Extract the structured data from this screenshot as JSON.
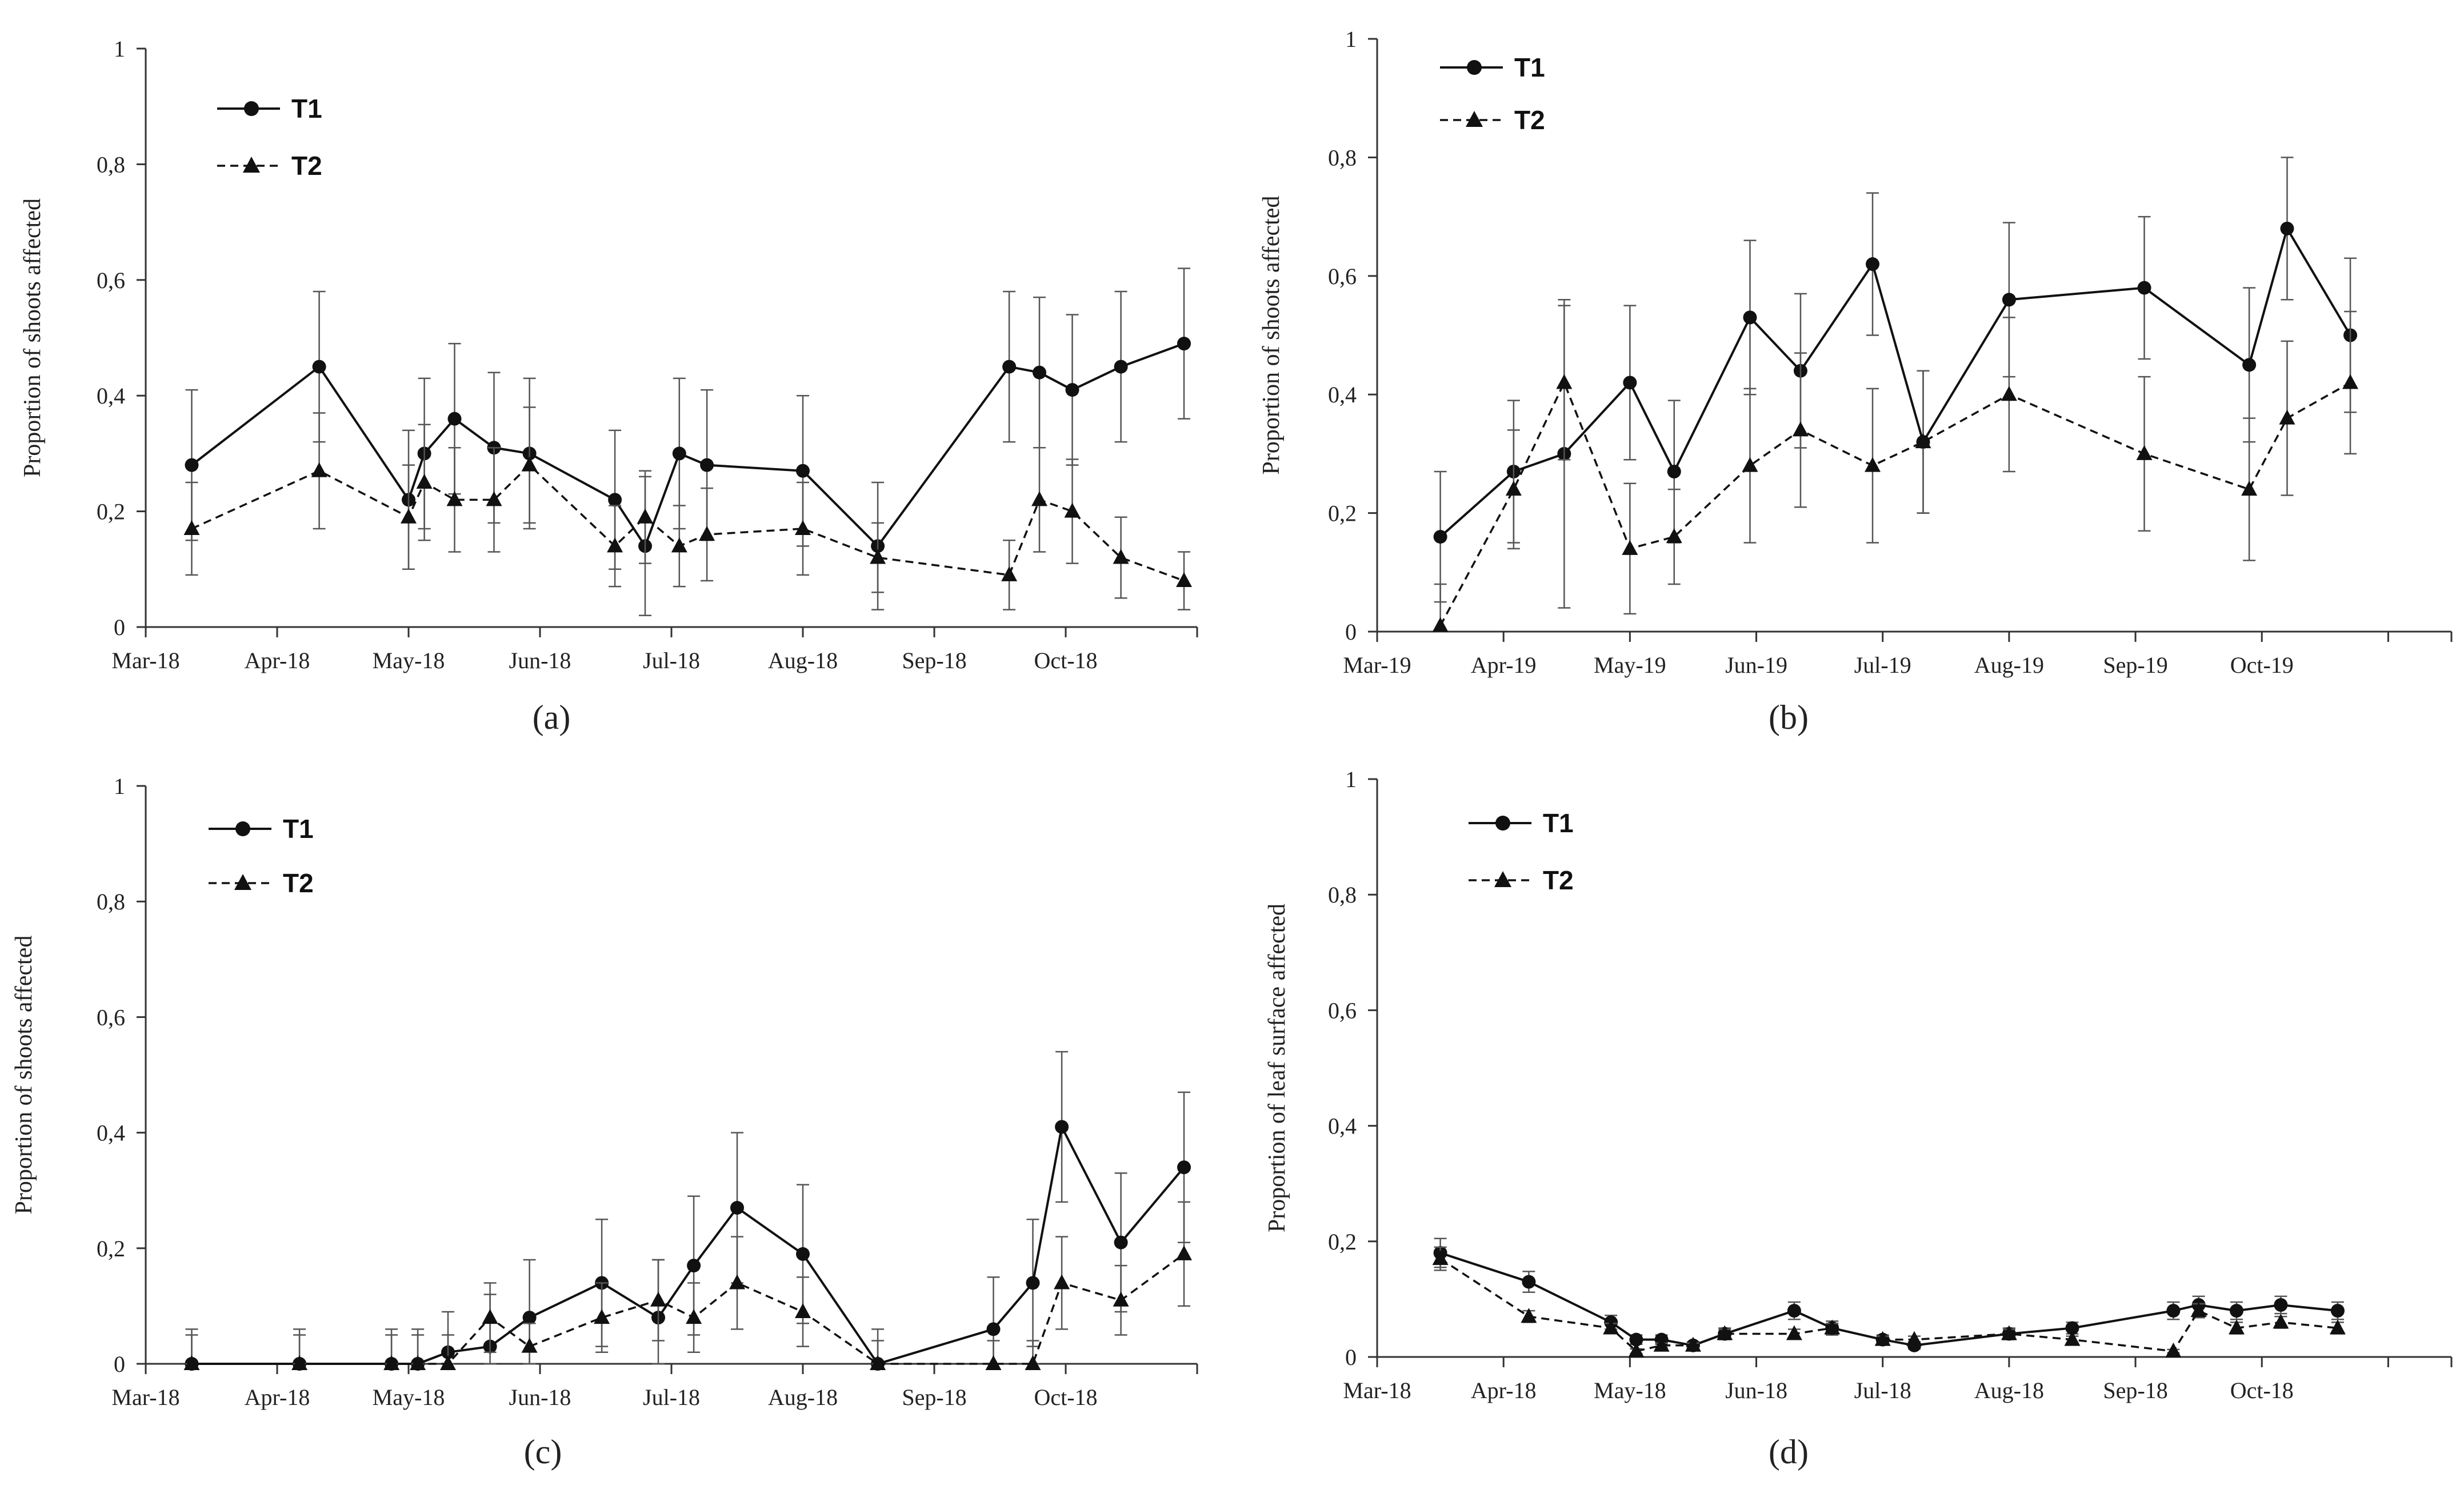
{
  "figure": {
    "series_colors": {
      "T1": "#111111",
      "T2": "#111111"
    }
  },
  "chart_data": [
    {
      "panel": "(a)",
      "type": "line",
      "ylabel": "Proportion of shoots affected",
      "xlabel": "",
      "ylim": [
        0,
        1
      ],
      "yticks": [
        0,
        0.2,
        0.4,
        0.6,
        0.8,
        1
      ],
      "ytick_labels": [
        "0",
        "0,2",
        "0,4",
        "0,6",
        "0,8",
        "1"
      ],
      "xlim": [
        0,
        8
      ],
      "xtick_labels": [
        "Mar-18",
        "Apr-18",
        "May-18",
        "Jun-18",
        "Jul-18",
        "Aug-18",
        "Sep-18",
        "Oct-18"
      ],
      "legend": {
        "position": "top-left",
        "entries": [
          "T1",
          "T2"
        ]
      },
      "series": [
        {
          "name": "T1",
          "marker": "circle",
          "line": "solid",
          "x": [
            0.35,
            1.32,
            2.0,
            2.12,
            2.35,
            2.65,
            2.92,
            3.57,
            3.8,
            4.06,
            4.27,
            5.0,
            5.57,
            6.57,
            6.8,
            7.05,
            7.42,
            7.9
          ],
          "y": [
            0.28,
            0.45,
            0.22,
            0.3,
            0.36,
            0.31,
            0.3,
            0.22,
            0.14,
            0.3,
            0.28,
            0.27,
            0.14,
            0.45,
            0.44,
            0.41,
            0.45,
            0.49
          ],
          "err": [
            0.13,
            0.13,
            0.12,
            0.13,
            0.13,
            0.13,
            0.13,
            0.12,
            0.12,
            0.13,
            0.13,
            0.13,
            0.11,
            0.13,
            0.13,
            0.13,
            0.13,
            0.13
          ]
        },
        {
          "name": "T2",
          "marker": "triangle",
          "line": "dashed",
          "x": [
            0.35,
            1.32,
            2.0,
            2.12,
            2.35,
            2.65,
            2.92,
            3.57,
            3.8,
            4.06,
            4.27,
            5.0,
            5.57,
            6.57,
            6.8,
            7.05,
            7.42,
            7.9
          ],
          "y": [
            0.17,
            0.27,
            0.19,
            0.25,
            0.22,
            0.22,
            0.28,
            0.14,
            0.19,
            0.14,
            0.16,
            0.17,
            0.12,
            0.09,
            0.22,
            0.2,
            0.12,
            0.08
          ],
          "err": [
            0.08,
            0.1,
            0.09,
            0.1,
            0.09,
            0.09,
            0.1,
            0.07,
            0.08,
            0.07,
            0.08,
            0.08,
            0.06,
            0.06,
            0.09,
            0.09,
            0.07,
            0.05
          ]
        }
      ]
    },
    {
      "panel": "(b)",
      "type": "line",
      "ylabel": "Proportion of shoots affected",
      "xlabel": "",
      "ylim": [
        0,
        1
      ],
      "yticks": [
        0,
        0.2,
        0.4,
        0.6,
        0.8,
        1
      ],
      "ytick_labels": [
        "0",
        "0,2",
        "0,4",
        "0,6",
        "0,8",
        "1"
      ],
      "xlim": [
        0,
        8.5
      ],
      "xtick_labels": [
        "Mar-19",
        "Apr-19",
        "May-19",
        "Jun-19",
        "Jul-19",
        "Aug-19",
        "Sep-19",
        "Oct-19"
      ],
      "legend": {
        "position": "top-left",
        "entries": [
          "T1",
          "T2"
        ]
      },
      "series": [
        {
          "name": "T1",
          "marker": "circle",
          "line": "solid",
          "x": [
            0.5,
            1.08,
            1.48,
            2.0,
            2.35,
            2.95,
            3.35,
            3.92,
            4.32,
            5.0,
            6.07,
            6.9,
            7.2,
            7.7
          ],
          "y": [
            0.16,
            0.27,
            0.3,
            0.42,
            0.27,
            0.53,
            0.44,
            0.62,
            0.32,
            0.56,
            0.58,
            0.45,
            0.68,
            0.5
          ],
          "err": [
            0.11,
            0.12,
            0.26,
            0.13,
            0.12,
            0.13,
            0.13,
            0.12,
            0.12,
            0.13,
            0.12,
            0.13,
            0.12,
            0.13
          ]
        },
        {
          "name": "T2",
          "marker": "triangle",
          "line": "dashed",
          "x": [
            0.5,
            1.08,
            1.48,
            2.0,
            2.35,
            2.95,
            3.35,
            3.92,
            4.32,
            5.0,
            6.07,
            6.9,
            7.2,
            7.7
          ],
          "y": [
            0.01,
            0.24,
            0.42,
            0.14,
            0.16,
            0.28,
            0.34,
            0.28,
            0.32,
            0.4,
            0.3,
            0.24,
            0.36,
            0.42
          ],
          "err": [
            0.07,
            0.1,
            0.13,
            0.11,
            0.08,
            0.13,
            0.13,
            0.13,
            0.12,
            0.13,
            0.13,
            0.12,
            0.13,
            0.12
          ]
        }
      ]
    },
    {
      "panel": "(c)",
      "type": "line",
      "ylabel": "Proportion of shoots affected",
      "xlabel": "",
      "ylim": [
        0,
        1
      ],
      "yticks": [
        0,
        0.2,
        0.4,
        0.6,
        0.8,
        1
      ],
      "ytick_labels": [
        "0",
        "0,2",
        "0,4",
        "0,6",
        "0,8",
        "1"
      ],
      "xlim": [
        0,
        8
      ],
      "xtick_labels": [
        "Mar-18",
        "Apr-18",
        "May-18",
        "Jun-18",
        "Jul-18",
        "Aug-18",
        "Sep-18",
        "Oct-18"
      ],
      "legend": {
        "position": "top-left",
        "entries": [
          "T1",
          "T2"
        ]
      },
      "series": [
        {
          "name": "T1",
          "marker": "circle",
          "line": "solid",
          "x": [
            0.35,
            1.17,
            1.87,
            2.07,
            2.3,
            2.62,
            2.92,
            3.47,
            3.9,
            4.17,
            4.5,
            5.0,
            5.57,
            6.45,
            6.75,
            6.97,
            7.42,
            7.9
          ],
          "y": [
            0,
            0,
            0,
            0,
            0.02,
            0.03,
            0.08,
            0.14,
            0.08,
            0.17,
            0.27,
            0.19,
            0,
            0.06,
            0.14,
            0.41,
            0.21,
            0.34
          ],
          "err": [
            0.06,
            0.06,
            0.06,
            0.06,
            0.07,
            0.09,
            0.1,
            0.11,
            0.1,
            0.12,
            0.13,
            0.12,
            0.06,
            0.09,
            0.11,
            0.13,
            0.12,
            0.13
          ]
        },
        {
          "name": "T2",
          "marker": "triangle",
          "line": "dashed",
          "x": [
            0.35,
            1.17,
            1.87,
            2.07,
            2.3,
            2.62,
            2.92,
            3.47,
            3.9,
            4.17,
            4.5,
            5.0,
            5.57,
            6.45,
            6.75,
            6.97,
            7.42,
            7.9
          ],
          "y": [
            0,
            0,
            0,
            0,
            0,
            0.08,
            0.03,
            0.08,
            0.11,
            0.08,
            0.14,
            0.09,
            0,
            0,
            0,
            0.14,
            0.11,
            0.19
          ],
          "err": [
            0.05,
            0.05,
            0.05,
            0.05,
            0.05,
            0.06,
            0.04,
            0.06,
            0.07,
            0.06,
            0.08,
            0.06,
            0.04,
            0.04,
            0.04,
            0.08,
            0.06,
            0.09
          ]
        }
      ]
    },
    {
      "panel": "(d)",
      "type": "line",
      "ylabel": "Proportion of leaf surface affected",
      "xlabel": "",
      "ylim": [
        0,
        1
      ],
      "yticks": [
        0,
        0.2,
        0.4,
        0.6,
        0.8,
        1
      ],
      "ytick_labels": [
        "0",
        "0,2",
        "0,4",
        "0,6",
        "0,8",
        "1"
      ],
      "xlim": [
        0,
        8.5
      ],
      "xtick_labels": [
        "Mar-18",
        "Apr-18",
        "May-18",
        "Jun-18",
        "Jul-18",
        "Aug-18",
        "Sep-18",
        "Oct-18"
      ],
      "legend": {
        "position": "top-left",
        "entries": [
          "T1",
          "T2"
        ]
      },
      "series": [
        {
          "name": "T1",
          "marker": "circle",
          "line": "solid",
          "x": [
            0.5,
            1.2,
            1.85,
            2.05,
            2.25,
            2.5,
            2.75,
            3.3,
            3.6,
            4.0,
            4.25,
            5.0,
            5.5,
            6.3,
            6.5,
            6.8,
            7.15,
            7.6
          ],
          "y": [
            0.18,
            0.13,
            0.06,
            0.03,
            0.03,
            0.02,
            0.04,
            0.08,
            0.05,
            0.03,
            0.02,
            0.04,
            0.05,
            0.08,
            0.09,
            0.08,
            0.09,
            0.08
          ],
          "err": [
            0.025,
            0.018,
            0.012,
            0.008,
            0.008,
            0.006,
            0.01,
            0.015,
            0.012,
            0.008,
            0.006,
            0.01,
            0.01,
            0.015,
            0.015,
            0.015,
            0.015,
            0.015
          ]
        },
        {
          "name": "T2",
          "marker": "triangle",
          "line": "dashed",
          "x": [
            0.5,
            1.2,
            1.85,
            2.05,
            2.25,
            2.5,
            2.75,
            3.3,
            3.6,
            4.0,
            4.25,
            5.0,
            5.5,
            6.3,
            6.5,
            6.8,
            7.15,
            7.6
          ],
          "y": [
            0.17,
            0.07,
            0.05,
            0.01,
            0.02,
            0.02,
            0.04,
            0.04,
            0.05,
            0.03,
            0.03,
            0.04,
            0.03,
            0.01,
            0.08,
            0.05,
            0.06,
            0.05
          ],
          "err": [
            0.02,
            0.01,
            0.008,
            0.004,
            0.004,
            0.004,
            0.008,
            0.008,
            0.008,
            0.006,
            0.006,
            0.008,
            0.006,
            0.003,
            0.012,
            0.01,
            0.01,
            0.01
          ]
        }
      ]
    }
  ]
}
